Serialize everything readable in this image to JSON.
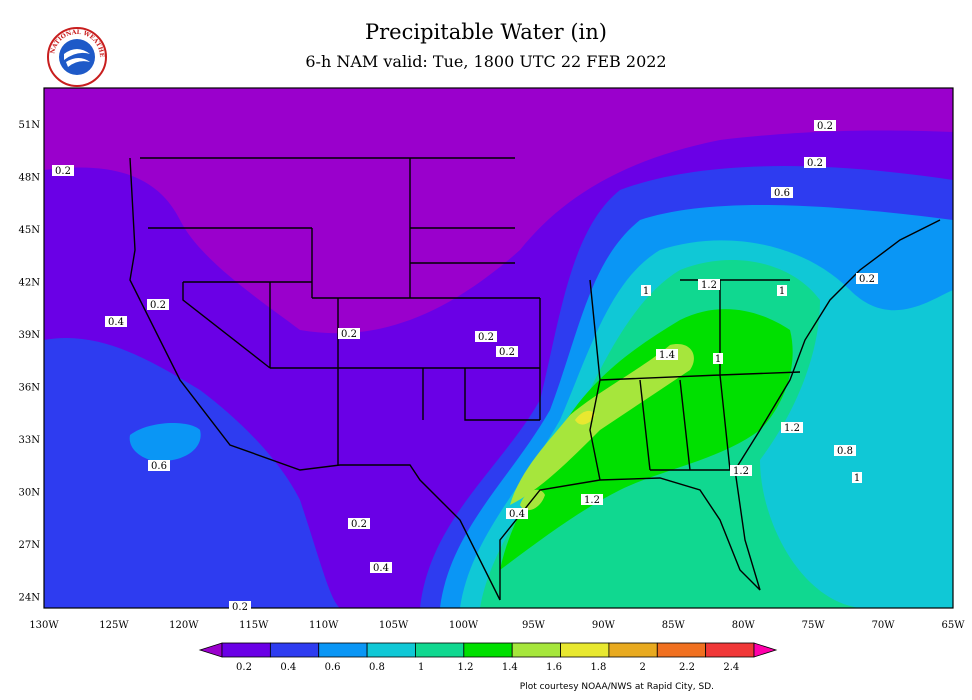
{
  "header": {
    "title": "Precipitable Water (in)",
    "subtitle": "6-h NAM valid: Tue, 1800 UTC 22 FEB 2022"
  },
  "logo": {
    "icon": "national-weather-service-logo",
    "text": "NATIONAL WEATHER SERVICE"
  },
  "map": {
    "lon_labels": [
      "130W",
      "125W",
      "120W",
      "115W",
      "110W",
      "105W",
      "100W",
      "95W",
      "90W",
      "85W",
      "80W",
      "75W",
      "70W",
      "65W"
    ],
    "lat_labels": [
      "51N",
      "48N",
      "45N",
      "42N",
      "39N",
      "36N",
      "33N",
      "30N",
      "27N",
      "24N"
    ],
    "contour_labels": [
      "0.2",
      "0.2",
      "0.2",
      "0.2",
      "0.2",
      "0.2",
      "0.2",
      "0.2",
      "0.4",
      "0.4",
      "0.4",
      "0.6",
      "0.6",
      "0.8",
      "1",
      "1",
      "1",
      "1",
      "1.2",
      "1.2",
      "1.2",
      "1.2",
      "1.4",
      "0.2",
      "0.2"
    ],
    "colors": {
      "purple": "#9a00cc",
      "violet": "#6a00e6",
      "blue": "#2e3cf0",
      "sky": "#0a96f5",
      "cyan": "#10c8d6",
      "teal": "#10d890",
      "green": "#00e000",
      "lime": "#a6e63c"
    }
  },
  "colorbar": {
    "ticks": [
      "0.2",
      "0.4",
      "0.6",
      "0.8",
      "1",
      "1.2",
      "1.4",
      "1.6",
      "1.8",
      "2",
      "2.2",
      "2.4"
    ],
    "colors": [
      "#9a00cc",
      "#6a00e6",
      "#2e3cf0",
      "#0a96f5",
      "#10c8d6",
      "#10d890",
      "#00e000",
      "#a6e63c",
      "#e8e830",
      "#e8aa20",
      "#f07020",
      "#f03838",
      "#ff00aa"
    ]
  },
  "footer": {
    "credit": "Plot courtesy NOAA/NWS at Rapid City, SD."
  }
}
